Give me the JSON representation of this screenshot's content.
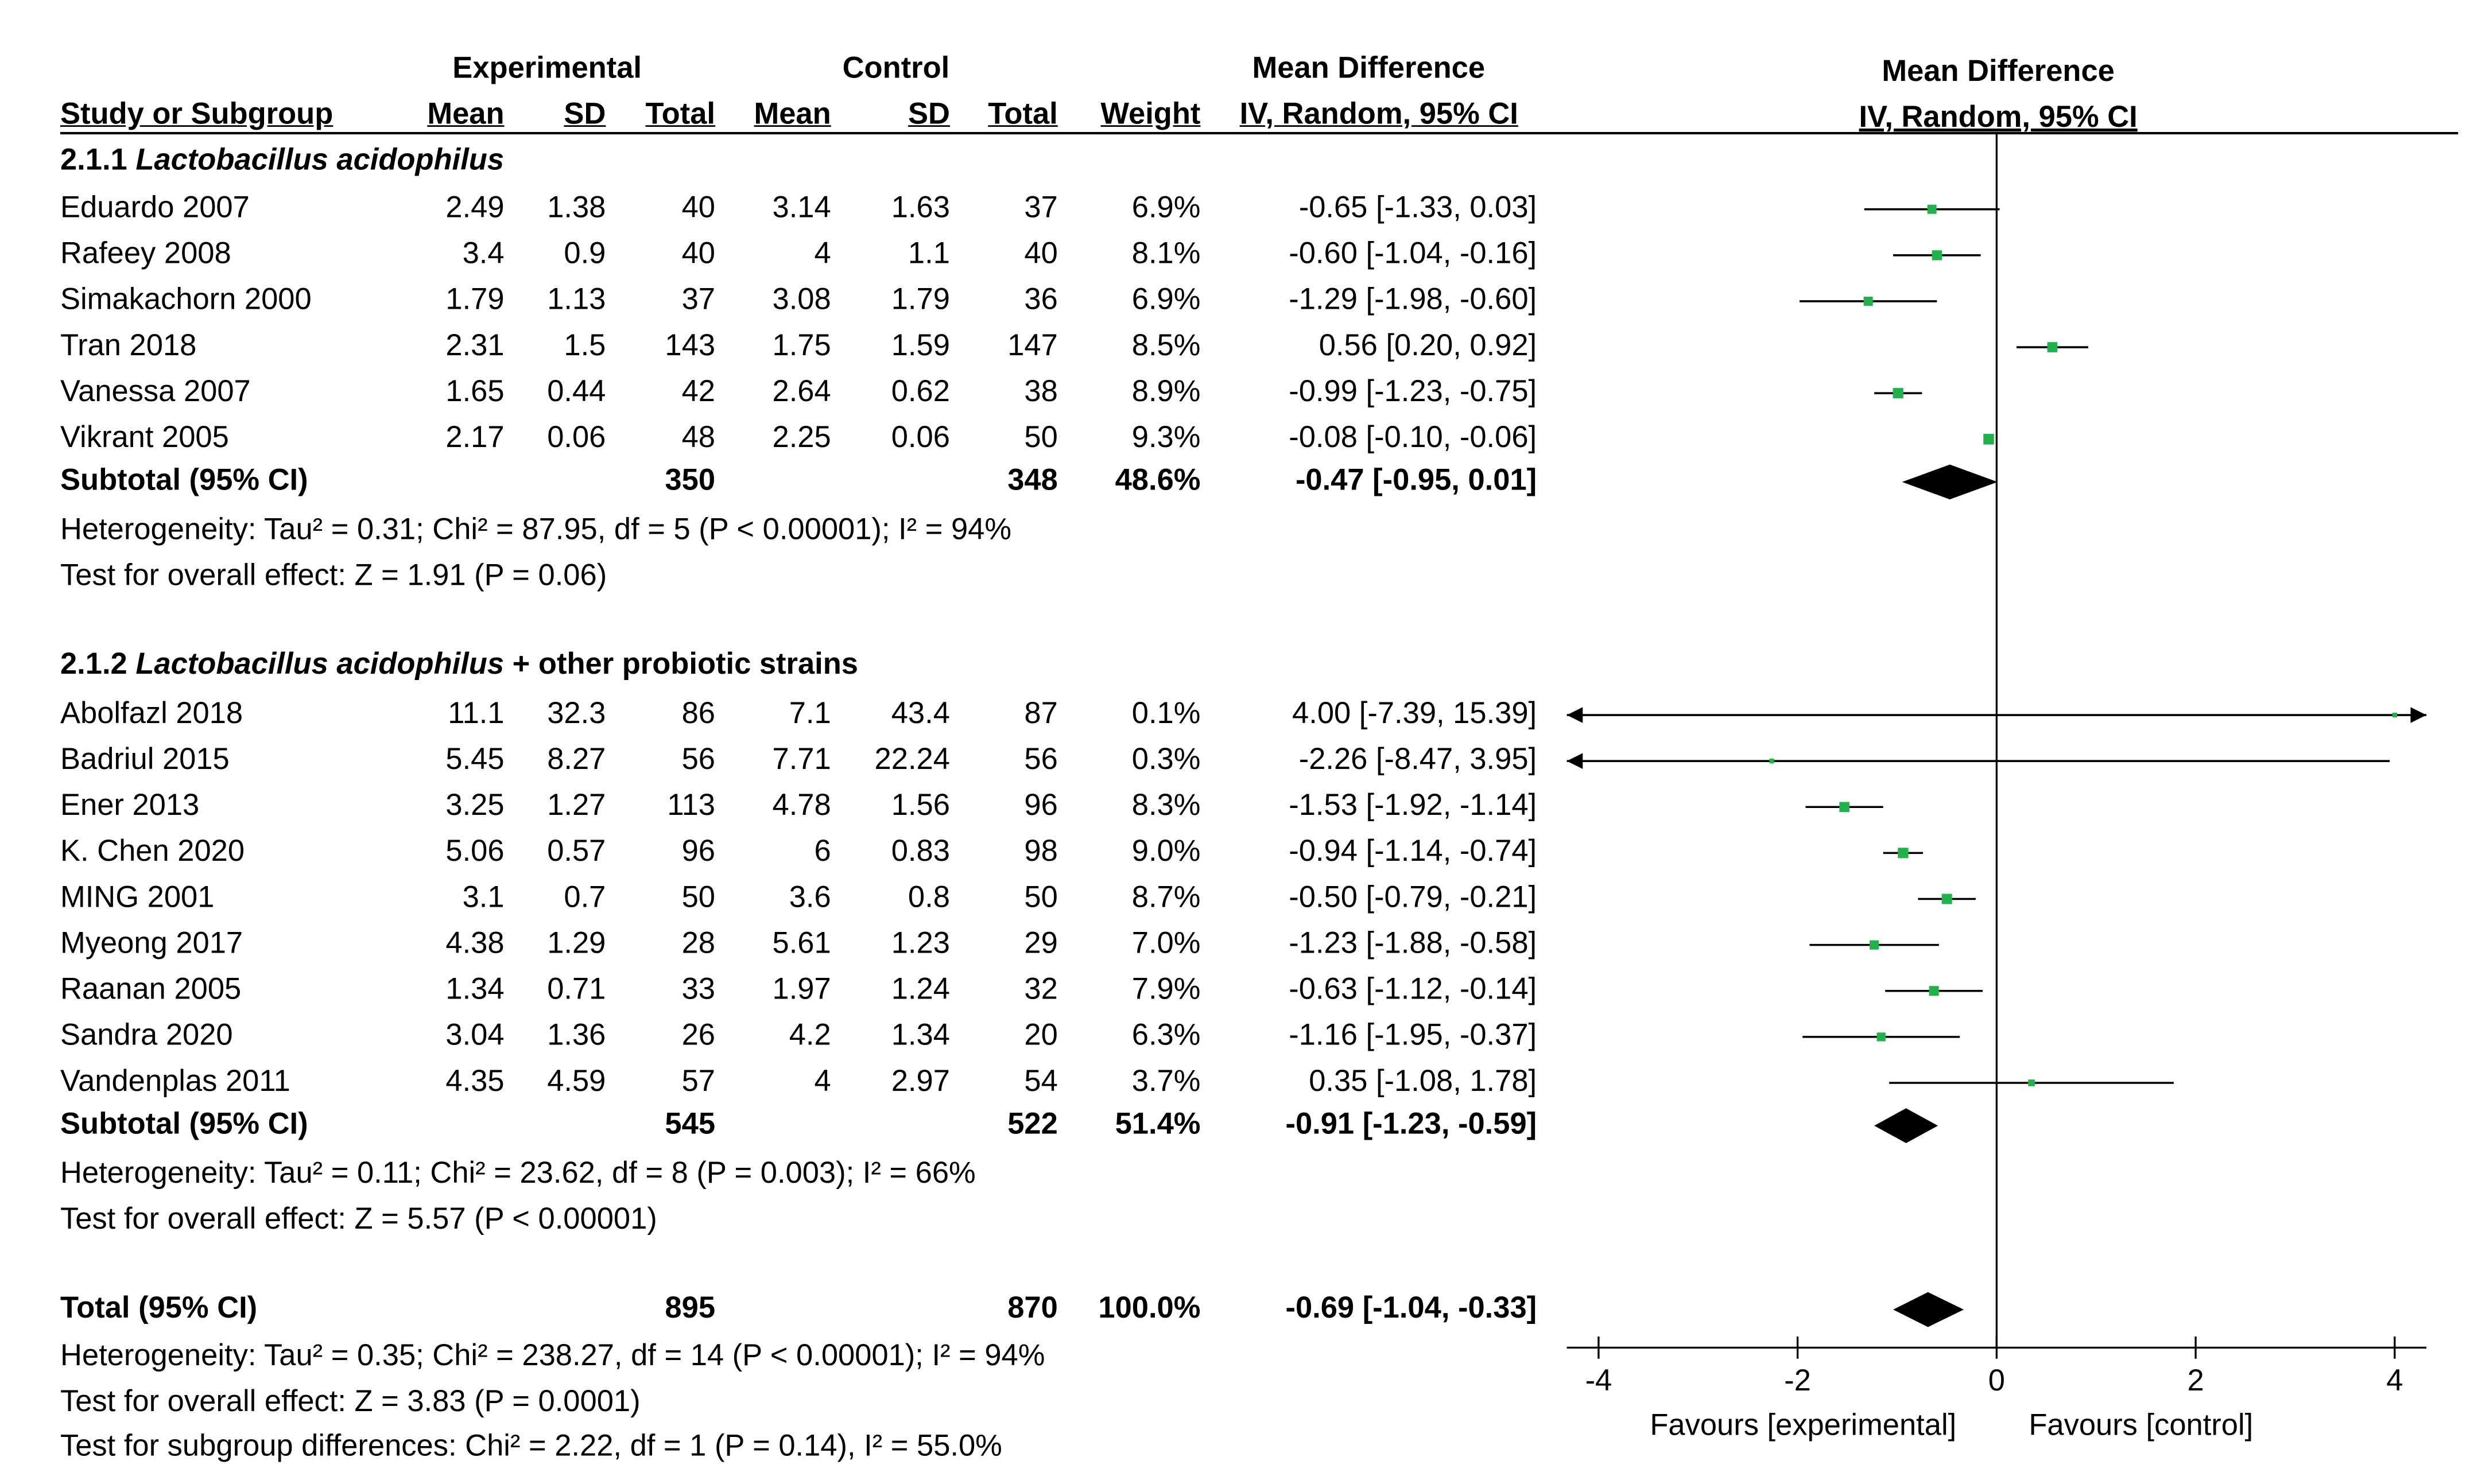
{
  "header": {
    "experimental": "Experimental",
    "control": "Control",
    "md_left_title": "Mean Difference",
    "md_left_method": "IV, Random, 95% CI",
    "md_plot_title": "Mean Difference",
    "md_plot_method": "IV, Random, 95% CI",
    "study_col": "Study or Subgroup",
    "mean": "Mean",
    "sd": "SD",
    "total": "Total",
    "weight": "Weight"
  },
  "subgroups": [
    {
      "label_prefix": "2.1.1 ",
      "label_italic": "Lactobacillus acidophilus",
      "label_suffix": "",
      "studies": [
        {
          "study": "Eduardo 2007",
          "e_mean": "2.49",
          "e_sd": "1.38",
          "e_total": "40",
          "c_mean": "3.14",
          "c_sd": "1.63",
          "c_total": "37",
          "weight": "6.9%",
          "ci": "-0.65 [-1.33, 0.03]"
        },
        {
          "study": "Rafeey 2008",
          "e_mean": "3.4",
          "e_sd": "0.9",
          "e_total": "40",
          "c_mean": "4",
          "c_sd": "1.1",
          "c_total": "40",
          "weight": "8.1%",
          "ci": "-0.60 [-1.04, -0.16]"
        },
        {
          "study": "Simakachorn 2000",
          "e_mean": "1.79",
          "e_sd": "1.13",
          "e_total": "37",
          "c_mean": "3.08",
          "c_sd": "1.79",
          "c_total": "36",
          "weight": "6.9%",
          "ci": "-1.29 [-1.98, -0.60]"
        },
        {
          "study": "Tran 2018",
          "e_mean": "2.31",
          "e_sd": "1.5",
          "e_total": "143",
          "c_mean": "1.75",
          "c_sd": "1.59",
          "c_total": "147",
          "weight": "8.5%",
          "ci": "0.56 [0.20, 0.92]"
        },
        {
          "study": "Vanessa 2007",
          "e_mean": "1.65",
          "e_sd": "0.44",
          "e_total": "42",
          "c_mean": "2.64",
          "c_sd": "0.62",
          "c_total": "38",
          "weight": "8.9%",
          "ci": "-0.99 [-1.23, -0.75]"
        },
        {
          "study": "Vikrant 2005",
          "e_mean": "2.17",
          "e_sd": "0.06",
          "e_total": "48",
          "c_mean": "2.25",
          "c_sd": "0.06",
          "c_total": "50",
          "weight": "9.3%",
          "ci": "-0.08 [-0.10, -0.06]"
        }
      ],
      "subtotal": {
        "label": "Subtotal (95% CI)",
        "e_total": "350",
        "c_total": "348",
        "weight": "48.6%",
        "ci": "-0.47 [-0.95, 0.01]"
      },
      "heterogeneity": "Heterogeneity: Tau² = 0.31; Chi² = 87.95, df = 5 (P < 0.00001); I² = 94%",
      "overall": "Test for overall effect: Z = 1.91 (P = 0.06)"
    },
    {
      "label_prefix": "2.1.2 ",
      "label_italic": "Lactobacillus acidophilus",
      "label_suffix": " + other probiotic strains",
      "studies": [
        {
          "study": "Abolfazl 2018",
          "e_mean": "11.1",
          "e_sd": "32.3",
          "e_total": "86",
          "c_mean": "7.1",
          "c_sd": "43.4",
          "c_total": "87",
          "weight": "0.1%",
          "ci": "4.00 [-7.39, 15.39]"
        },
        {
          "study": "Badriul 2015",
          "e_mean": "5.45",
          "e_sd": "8.27",
          "e_total": "56",
          "c_mean": "7.71",
          "c_sd": "22.24",
          "c_total": "56",
          "weight": "0.3%",
          "ci": "-2.26 [-8.47, 3.95]"
        },
        {
          "study": "Ener 2013",
          "e_mean": "3.25",
          "e_sd": "1.27",
          "e_total": "113",
          "c_mean": "4.78",
          "c_sd": "1.56",
          "c_total": "96",
          "weight": "8.3%",
          "ci": "-1.53 [-1.92, -1.14]"
        },
        {
          "study": "K. Chen 2020",
          "e_mean": "5.06",
          "e_sd": "0.57",
          "e_total": "96",
          "c_mean": "6",
          "c_sd": "0.83",
          "c_total": "98",
          "weight": "9.0%",
          "ci": "-0.94 [-1.14, -0.74]"
        },
        {
          "study": "MING 2001",
          "e_mean": "3.1",
          "e_sd": "0.7",
          "e_total": "50",
          "c_mean": "3.6",
          "c_sd": "0.8",
          "c_total": "50",
          "weight": "8.7%",
          "ci": "-0.50 [-0.79, -0.21]"
        },
        {
          "study": "Myeong 2017",
          "e_mean": "4.38",
          "e_sd": "1.29",
          "e_total": "28",
          "c_mean": "5.61",
          "c_sd": "1.23",
          "c_total": "29",
          "weight": "7.0%",
          "ci": "-1.23 [-1.88, -0.58]"
        },
        {
          "study": "Raanan 2005",
          "e_mean": "1.34",
          "e_sd": "0.71",
          "e_total": "33",
          "c_mean": "1.97",
          "c_sd": "1.24",
          "c_total": "32",
          "weight": "7.9%",
          "ci": "-0.63 [-1.12, -0.14]"
        },
        {
          "study": "Sandra 2020",
          "e_mean": "3.04",
          "e_sd": "1.36",
          "e_total": "26",
          "c_mean": "4.2",
          "c_sd": "1.34",
          "c_total": "20",
          "weight": "6.3%",
          "ci": "-1.16 [-1.95, -0.37]"
        },
        {
          "study": "Vandenplas 2011",
          "e_mean": "4.35",
          "e_sd": "4.59",
          "e_total": "57",
          "c_mean": "4",
          "c_sd": "2.97",
          "c_total": "54",
          "weight": "3.7%",
          "ci": "0.35 [-1.08, 1.78]"
        }
      ],
      "subtotal": {
        "label": "Subtotal (95% CI)",
        "e_total": "545",
        "c_total": "522",
        "weight": "51.4%",
        "ci": "-0.91 [-1.23, -0.59]"
      },
      "heterogeneity": "Heterogeneity: Tau² = 0.11; Chi² = 23.62, df = 8 (P = 0.003); I² = 66%",
      "overall": "Test for overall effect: Z = 5.57 (P < 0.00001)"
    }
  ],
  "total": {
    "label": "Total (95% CI)",
    "e_total": "895",
    "c_total": "870",
    "weight": "100.0%",
    "ci": "-0.69 [-1.04, -0.33]",
    "heterogeneity": "Heterogeneity: Tau² = 0.35; Chi² = 238.27, df = 14 (P < 0.00001); I² = 94%",
    "overall": "Test for overall effect: Z = 3.83 (P = 0.0001)",
    "subgroup_diff": "Test for subgroup differences: Chi² = 2.22, df = 1 (P = 0.14), I² = 55.0%"
  },
  "colors": {
    "point": "#22b14c",
    "line": "#000000",
    "diamond": "#000000"
  },
  "chart_data": {
    "type": "forest",
    "title": "Mean Difference",
    "method": "IV, Random, 95% CI",
    "xlim": [
      -4,
      4
    ],
    "xticks": [
      -4,
      -2,
      0,
      2,
      4
    ],
    "xtick_labels": [
      "-4",
      "-2",
      "0",
      "2",
      "4"
    ],
    "left_label": "Favours [experimental]",
    "right_label": "Favours [control]",
    "studies": [
      {
        "name": "Eduardo 2007",
        "md": -0.65,
        "lo": -1.33,
        "hi": 0.03,
        "weight": 6.9
      },
      {
        "name": "Rafeey 2008",
        "md": -0.6,
        "lo": -1.04,
        "hi": -0.16,
        "weight": 8.1
      },
      {
        "name": "Simakachorn 2000",
        "md": -1.29,
        "lo": -1.98,
        "hi": -0.6,
        "weight": 6.9
      },
      {
        "name": "Tran 2018",
        "md": 0.56,
        "lo": 0.2,
        "hi": 0.92,
        "weight": 8.5
      },
      {
        "name": "Vanessa 2007",
        "md": -0.99,
        "lo": -1.23,
        "hi": -0.75,
        "weight": 8.9
      },
      {
        "name": "Vikrant 2005",
        "md": -0.08,
        "lo": -0.1,
        "hi": -0.06,
        "weight": 9.3
      },
      {
        "name": "Abolfazl 2018",
        "md": 4.0,
        "lo": -7.39,
        "hi": 15.39,
        "weight": 0.1
      },
      {
        "name": "Badriul 2015",
        "md": -2.26,
        "lo": -8.47,
        "hi": 3.95,
        "weight": 0.3
      },
      {
        "name": "Ener 2013",
        "md": -1.53,
        "lo": -1.92,
        "hi": -1.14,
        "weight": 8.3
      },
      {
        "name": "K. Chen 2020",
        "md": -0.94,
        "lo": -1.14,
        "hi": -0.74,
        "weight": 9.0
      },
      {
        "name": "MING 2001",
        "md": -0.5,
        "lo": -0.79,
        "hi": -0.21,
        "weight": 8.7
      },
      {
        "name": "Myeong 2017",
        "md": -1.23,
        "lo": -1.88,
        "hi": -0.58,
        "weight": 7.0
      },
      {
        "name": "Raanan 2005",
        "md": -0.63,
        "lo": -1.12,
        "hi": -0.14,
        "weight": 7.9
      },
      {
        "name": "Sandra 2020",
        "md": -1.16,
        "lo": -1.95,
        "hi": -0.37,
        "weight": 6.3
      },
      {
        "name": "Vandenplas 2011",
        "md": 0.35,
        "lo": -1.08,
        "hi": 1.78,
        "weight": 3.7
      }
    ],
    "summaries": [
      {
        "name": "Subtotal 2.1.1",
        "md": -0.47,
        "lo": -0.95,
        "hi": 0.01
      },
      {
        "name": "Subtotal 2.1.2",
        "md": -0.91,
        "lo": -1.23,
        "hi": -0.59
      },
      {
        "name": "Total",
        "md": -0.69,
        "lo": -1.04,
        "hi": -0.33
      }
    ]
  }
}
